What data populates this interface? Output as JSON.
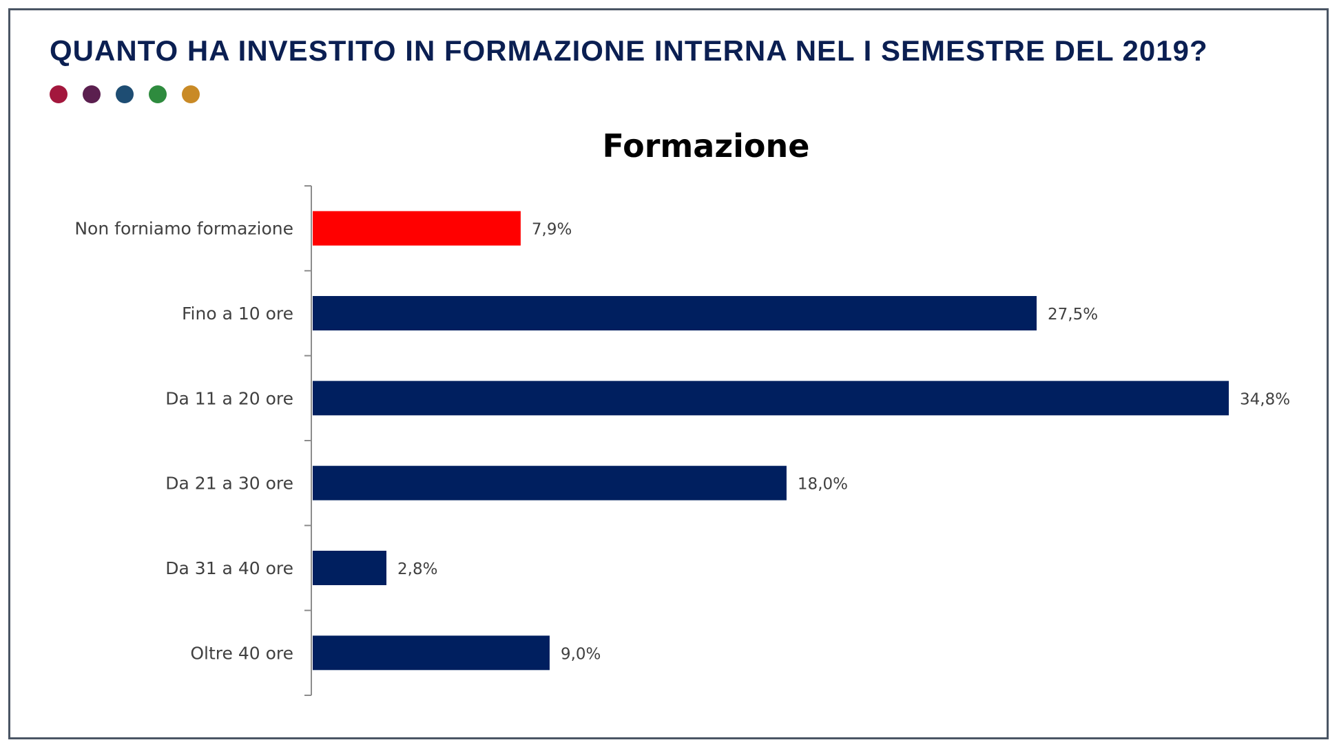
{
  "header": {
    "title": "QUANTO HA INVESTITO IN FORMAZIONE INTERNA NEL I SEMESTRE DEL 2019?",
    "title_color": "#0b1f52",
    "dots": [
      {
        "name": "dot-crimson",
        "color": "#a3173d"
      },
      {
        "name": "dot-plum",
        "color": "#5b1f4f"
      },
      {
        "name": "dot-teal-blue",
        "color": "#1e4d73"
      },
      {
        "name": "dot-green",
        "color": "#2e8b3e"
      },
      {
        "name": "dot-amber",
        "color": "#c98a26"
      }
    ]
  },
  "chart_data": {
    "type": "bar",
    "orientation": "horizontal",
    "title": "Formazione",
    "categories": [
      "Non forniamo formazione",
      "Fino a 10 ore",
      "Da 11 a 20 ore",
      "Da 21 a 30 ore",
      "Da 31 a 40 ore",
      "Oltre 40 ore"
    ],
    "values": [
      7.9,
      27.5,
      34.8,
      18.0,
      2.8,
      9.0
    ],
    "value_labels": [
      "7,9%",
      "27,5%",
      "34,8%",
      "18,0%",
      "2,8%",
      "9,0%"
    ],
    "bar_colors": [
      "#ff0000",
      "#001f5f",
      "#001f5f",
      "#001f5f",
      "#001f5f",
      "#001f5f"
    ],
    "xlim": [
      0,
      34.8
    ],
    "grid": false,
    "legend": "none",
    "xlabel": "",
    "ylabel": ""
  }
}
